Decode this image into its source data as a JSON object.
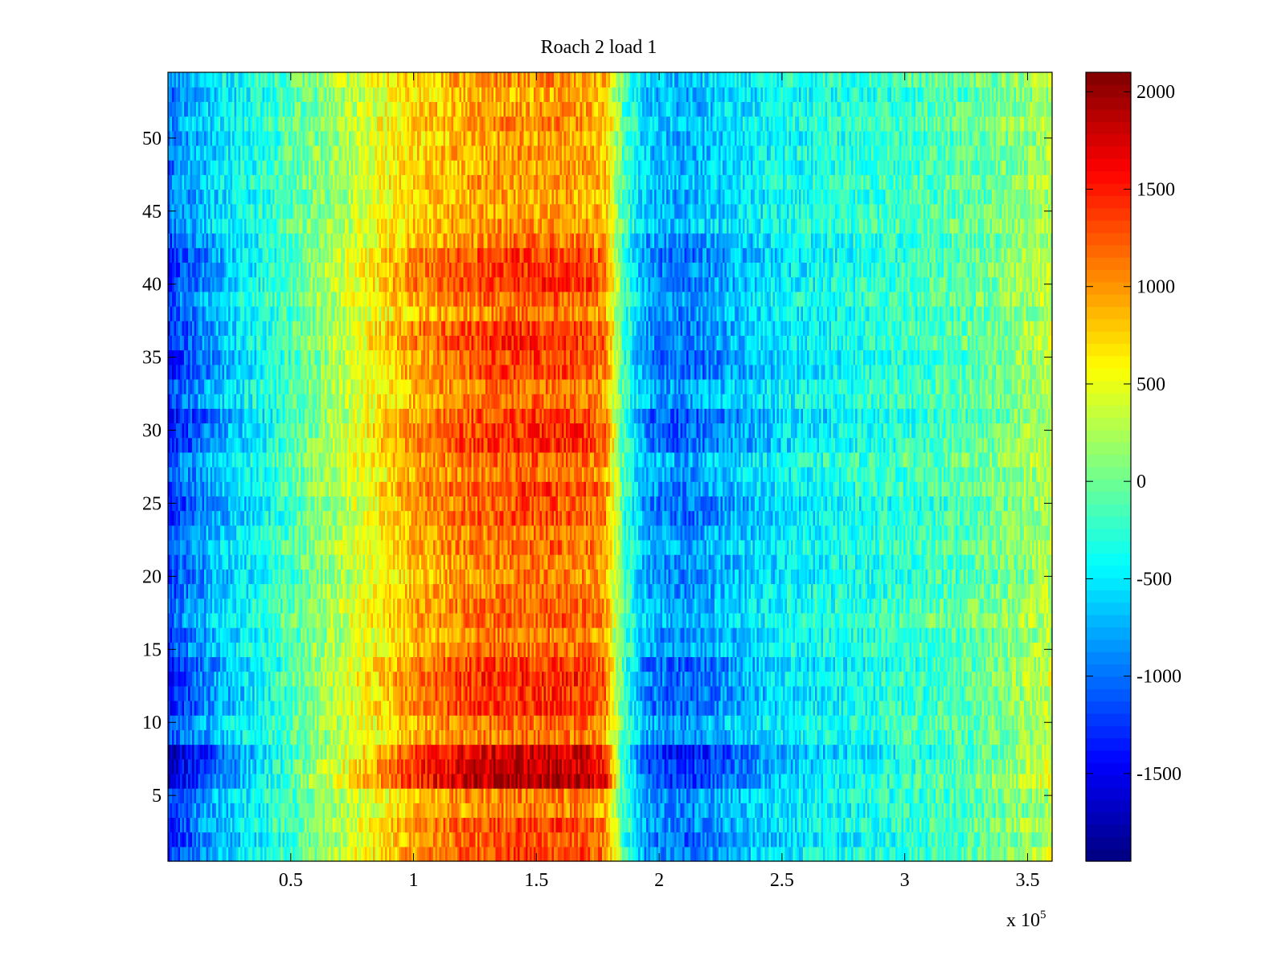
{
  "chart_data": {
    "type": "heatmap",
    "title": "Roach 2 load 1",
    "xlabel": "",
    "ylabel": "",
    "x_exponent_label": "x 10",
    "x_exponent_power": "5",
    "xlim": [
      0,
      3.6
    ],
    "ylim": [
      0.5,
      54.5
    ],
    "xticks": [
      {
        "value": 0.5,
        "label": "0.5"
      },
      {
        "value": 1,
        "label": "1"
      },
      {
        "value": 1.5,
        "label": "1.5"
      },
      {
        "value": 2,
        "label": "2"
      },
      {
        "value": 2.5,
        "label": "2.5"
      },
      {
        "value": 3,
        "label": "3"
      },
      {
        "value": 3.5,
        "label": "3.5"
      }
    ],
    "yticks": [
      {
        "value": 5,
        "label": "5"
      },
      {
        "value": 10,
        "label": "10"
      },
      {
        "value": 15,
        "label": "15"
      },
      {
        "value": 20,
        "label": "20"
      },
      {
        "value": 25,
        "label": "25"
      },
      {
        "value": 30,
        "label": "30"
      },
      {
        "value": 35,
        "label": "35"
      },
      {
        "value": 40,
        "label": "40"
      },
      {
        "value": 45,
        "label": "45"
      },
      {
        "value": 50,
        "label": "50"
      }
    ],
    "rows": 54,
    "colormap": "jet",
    "clim": [
      -1950,
      2100
    ],
    "colorbar_ticks": [
      {
        "value": 2000,
        "label": "2000"
      },
      {
        "value": 1500,
        "label": "1500"
      },
      {
        "value": 1000,
        "label": "1000"
      },
      {
        "value": 500,
        "label": "500"
      },
      {
        "value": 0,
        "label": "0"
      },
      {
        "value": -500,
        "label": "-500"
      },
      {
        "value": -1000,
        "label": "-1000"
      },
      {
        "value": -1500,
        "label": "-1500"
      }
    ],
    "column_profile": {
      "x": [
        0.0,
        0.05,
        0.2,
        0.4,
        0.6,
        0.8,
        1.0,
        1.2,
        1.4,
        1.6,
        1.7,
        1.78,
        1.85,
        1.95,
        2.1,
        2.3,
        2.5,
        2.7,
        2.9,
        3.1,
        3.3,
        3.5,
        3.6
      ],
      "value": [
        -1200,
        -1000,
        -650,
        -300,
        80,
        450,
        850,
        1050,
        1150,
        1150,
        1100,
        950,
        -100,
        -750,
        -850,
        -650,
        -450,
        -350,
        -250,
        -150,
        -50,
        150,
        300
      ]
    },
    "row_gain": [
      {
        "rows": [
          1,
          3
        ],
        "gain": 1.15
      },
      {
        "rows": [
          6,
          8
        ],
        "gain": 1.6
      },
      {
        "rows": [
          11,
          14
        ],
        "gain": 1.25
      },
      {
        "rows": [
          24,
          26
        ],
        "gain": 1.15
      },
      {
        "rows": [
          29,
          31
        ],
        "gain": 1.25
      },
      {
        "rows": [
          34,
          37
        ],
        "gain": 1.2
      },
      {
        "rows": [
          40,
          42
        ],
        "gain": 1.2
      },
      {
        "rows": [
          44,
          54
        ],
        "gain": 0.85
      }
    ],
    "noise_amplitude": 320
  }
}
